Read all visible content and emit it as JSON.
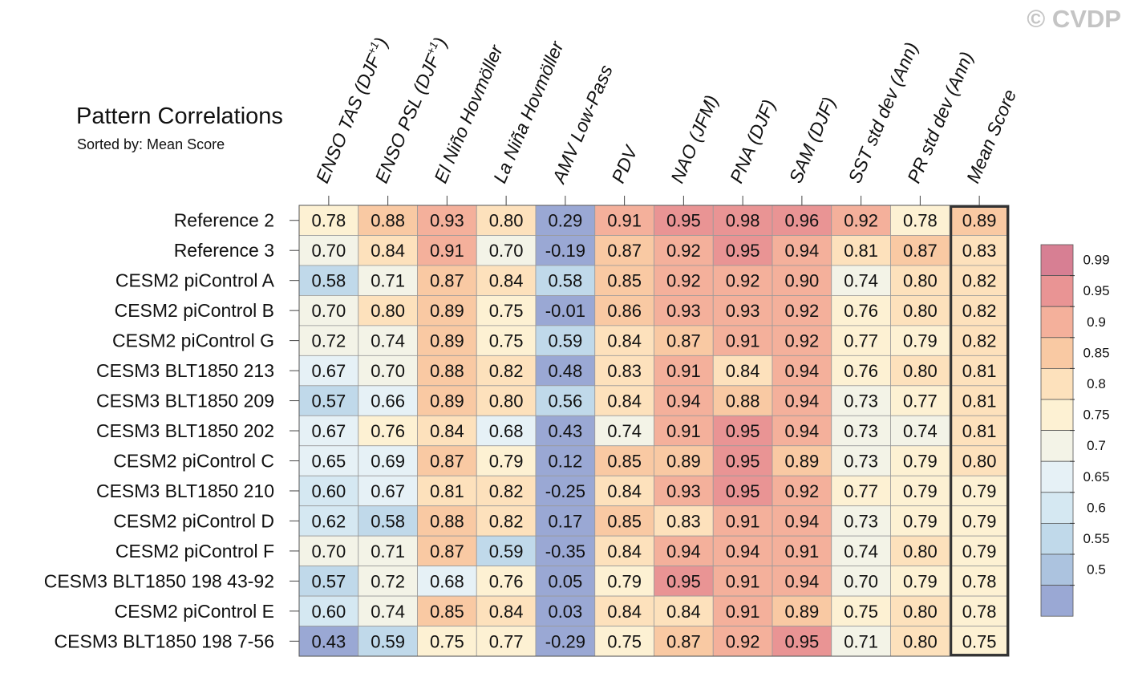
{
  "chart_data": {
    "type": "heatmap",
    "title": "Pattern Correlations",
    "subtitle": "Sorted by: Mean Score",
    "watermark": "© CVDP",
    "columns": [
      {
        "pre": "ENSO TAS (DJF",
        "sup": "+1",
        "post": ")"
      },
      {
        "pre": "ENSO PSL (DJF",
        "sup": "+1",
        "post": ")"
      },
      {
        "pre": "El Niño Hovmöller",
        "sup": "",
        "post": ""
      },
      {
        "pre": "La Niña Hovmöller",
        "sup": "",
        "post": ""
      },
      {
        "pre": "AMV Low-Pass",
        "sup": "",
        "post": ""
      },
      {
        "pre": "PDV",
        "sup": "",
        "post": ""
      },
      {
        "pre": "NAO (JFM)",
        "sup": "",
        "post": ""
      },
      {
        "pre": "PNA (DJF)",
        "sup": "",
        "post": ""
      },
      {
        "pre": "SAM (DJF)",
        "sup": "",
        "post": ""
      },
      {
        "pre": "SST std dev (Ann)",
        "sup": "",
        "post": ""
      },
      {
        "pre": "PR std dev (Ann)",
        "sup": "",
        "post": ""
      },
      {
        "pre": "Mean Score",
        "sup": "",
        "post": ""
      }
    ],
    "rows": [
      "Reference 2",
      "Reference 3",
      "CESM2 piControl A",
      "CESM2 piControl B",
      "CESM2 piControl G",
      "CESM3 BLT1850 213",
      "CESM3 BLT1850 209",
      "CESM3 BLT1850 202",
      "CESM2 piControl C",
      "CESM3 BLT1850 210",
      "CESM2 piControl D",
      "CESM2 piControl F",
      "CESM3 BLT1850 198 43-92",
      "CESM2 piControl E",
      "CESM3 BLT1850 198 7-56"
    ],
    "values": [
      [
        "0.78",
        "0.88",
        "0.93",
        "0.80",
        "0.29",
        "0.91",
        "0.95",
        "0.98",
        "0.96",
        "0.92",
        "0.78",
        "0.89"
      ],
      [
        "0.70",
        "0.84",
        "0.91",
        "0.70",
        "-0.19",
        "0.87",
        "0.92",
        "0.95",
        "0.94",
        "0.81",
        "0.87",
        "0.83"
      ],
      [
        "0.58",
        "0.71",
        "0.87",
        "0.84",
        "0.58",
        "0.85",
        "0.92",
        "0.92",
        "0.90",
        "0.74",
        "0.80",
        "0.82"
      ],
      [
        "0.70",
        "0.80",
        "0.89",
        "0.75",
        "-0.01",
        "0.86",
        "0.93",
        "0.93",
        "0.92",
        "0.76",
        "0.80",
        "0.82"
      ],
      [
        "0.72",
        "0.74",
        "0.89",
        "0.75",
        "0.59",
        "0.84",
        "0.87",
        "0.91",
        "0.92",
        "0.77",
        "0.79",
        "0.82"
      ],
      [
        "0.67",
        "0.70",
        "0.88",
        "0.82",
        "0.48",
        "0.83",
        "0.91",
        "0.84",
        "0.94",
        "0.76",
        "0.80",
        "0.81"
      ],
      [
        "0.57",
        "0.66",
        "0.89",
        "0.80",
        "0.56",
        "0.84",
        "0.94",
        "0.88",
        "0.94",
        "0.73",
        "0.77",
        "0.81"
      ],
      [
        "0.67",
        "0.76",
        "0.84",
        "0.68",
        "0.43",
        "0.74",
        "0.91",
        "0.95",
        "0.94",
        "0.73",
        "0.74",
        "0.81"
      ],
      [
        "0.65",
        "0.69",
        "0.87",
        "0.79",
        "0.12",
        "0.85",
        "0.89",
        "0.95",
        "0.89",
        "0.73",
        "0.79",
        "0.80"
      ],
      [
        "0.60",
        "0.67",
        "0.81",
        "0.82",
        "-0.25",
        "0.84",
        "0.93",
        "0.95",
        "0.92",
        "0.77",
        "0.79",
        "0.79"
      ],
      [
        "0.62",
        "0.58",
        "0.88",
        "0.82",
        "0.17",
        "0.85",
        "0.83",
        "0.91",
        "0.94",
        "0.73",
        "0.79",
        "0.79"
      ],
      [
        "0.70",
        "0.71",
        "0.87",
        "0.59",
        "-0.35",
        "0.84",
        "0.94",
        "0.94",
        "0.91",
        "0.74",
        "0.80",
        "0.79"
      ],
      [
        "0.57",
        "0.72",
        "0.68",
        "0.76",
        "0.05",
        "0.79",
        "0.95",
        "0.91",
        "0.94",
        "0.70",
        "0.79",
        "0.78"
      ],
      [
        "0.60",
        "0.74",
        "0.85",
        "0.84",
        "0.03",
        "0.84",
        "0.84",
        "0.91",
        "0.89",
        "0.75",
        "0.80",
        "0.78"
      ],
      [
        "0.43",
        "0.59",
        "0.75",
        "0.77",
        "-0.29",
        "0.75",
        "0.87",
        "0.92",
        "0.95",
        "0.71",
        "0.80",
        "0.75"
      ]
    ],
    "colorbar": {
      "tick_labels": [
        "0.99",
        "0.95",
        "0.9",
        "0.85",
        "0.8",
        "0.75",
        "0.7",
        "0.65",
        "0.6",
        "0.55",
        "0.5"
      ],
      "thresholds": [
        0.5,
        0.55,
        0.6,
        0.65,
        0.7,
        0.75,
        0.8,
        0.85,
        0.9,
        0.95,
        0.99
      ],
      "colors": [
        "#9aa8d4",
        "#acc3df",
        "#c0d9ea",
        "#d5e8f2",
        "#e6f1f6",
        "#f3f3e7",
        "#fdf1d3",
        "#fde1bc",
        "#f9c9a3",
        "#f4b09b",
        "#e99494",
        "#d77f93"
      ]
    },
    "highlight_column": "Mean Score"
  }
}
